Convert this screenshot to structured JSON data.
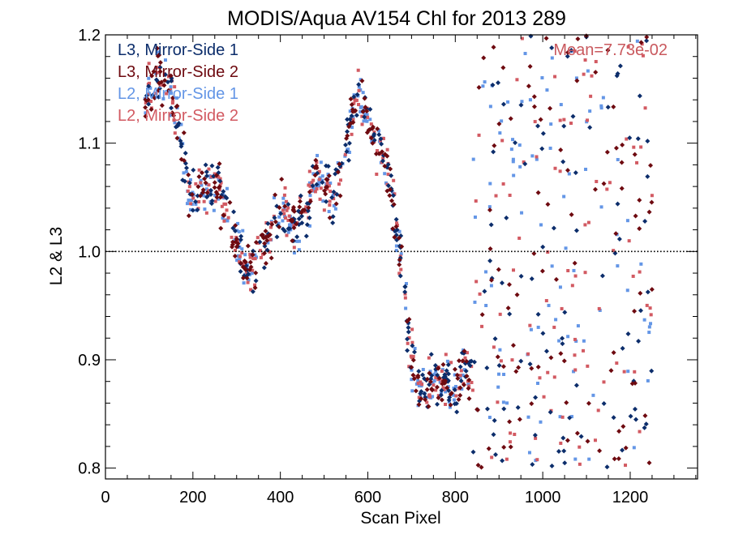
{
  "chart_data": {
    "type": "scatter",
    "title": "MODIS/Aqua AV154 Chl for 2013 289",
    "xlabel": "Scan Pixel",
    "ylabel": "L2 & L3",
    "xlim": [
      0,
      1354
    ],
    "ylim": [
      0.79,
      1.2
    ],
    "x_ticks": [
      0,
      200,
      400,
      600,
      800,
      1000,
      1200
    ],
    "x_tick_labels": [
      "0",
      "200",
      "400",
      "600",
      "800",
      "1000",
      "1200"
    ],
    "y_ticks": [
      0.8,
      0.9,
      1.0,
      1.1,
      1.2
    ],
    "y_tick_labels": [
      "0.8",
      "0.9",
      "1.0",
      "1.1",
      "1.2"
    ],
    "reference_line": {
      "y": 1.0,
      "style": "dotted"
    },
    "annotation": {
      "text": "Mean=7.73e-02",
      "color": "#c9595e"
    },
    "legend_position": "top-left",
    "series": [
      {
        "name": "L3, Mirror-Side 1",
        "color": "#0c2d6b",
        "marker": "diamond"
      },
      {
        "name": "L3, Mirror-Side 2",
        "color": "#6e0a10",
        "marker": "diamond"
      },
      {
        "name": "L2, Mirror-Side 1",
        "color": "#6496e6",
        "marker": "square"
      },
      {
        "name": "L2, Mirror-Side 2",
        "color": "#d25a62",
        "marker": "square"
      }
    ],
    "trend_profile": {
      "x": [
        90,
        120,
        150,
        170,
        190,
        205,
        230,
        260,
        280,
        300,
        320,
        340,
        360,
        380,
        400,
        420,
        440,
        460,
        480,
        500,
        520,
        540,
        560,
        580,
        600,
        620,
        640,
        660,
        680,
        700,
        720,
        750,
        780,
        800,
        820,
        840
      ],
      "y": [
        1.14,
        1.16,
        1.15,
        1.1,
        1.06,
        1.05,
        1.06,
        1.06,
        1.03,
        1.01,
        0.98,
        0.99,
        1.0,
        1.02,
        1.04,
        1.03,
        1.02,
        1.04,
        1.07,
        1.06,
        1.05,
        1.07,
        1.12,
        1.15,
        1.12,
        1.1,
        1.08,
        1.04,
        0.98,
        0.9,
        0.87,
        0.88,
        0.88,
        0.87,
        0.9,
        0.88
      ]
    },
    "scatter_region": {
      "x_start": 840,
      "x_end": 1250,
      "y_min": 0.8,
      "y_max": 1.2
    }
  }
}
